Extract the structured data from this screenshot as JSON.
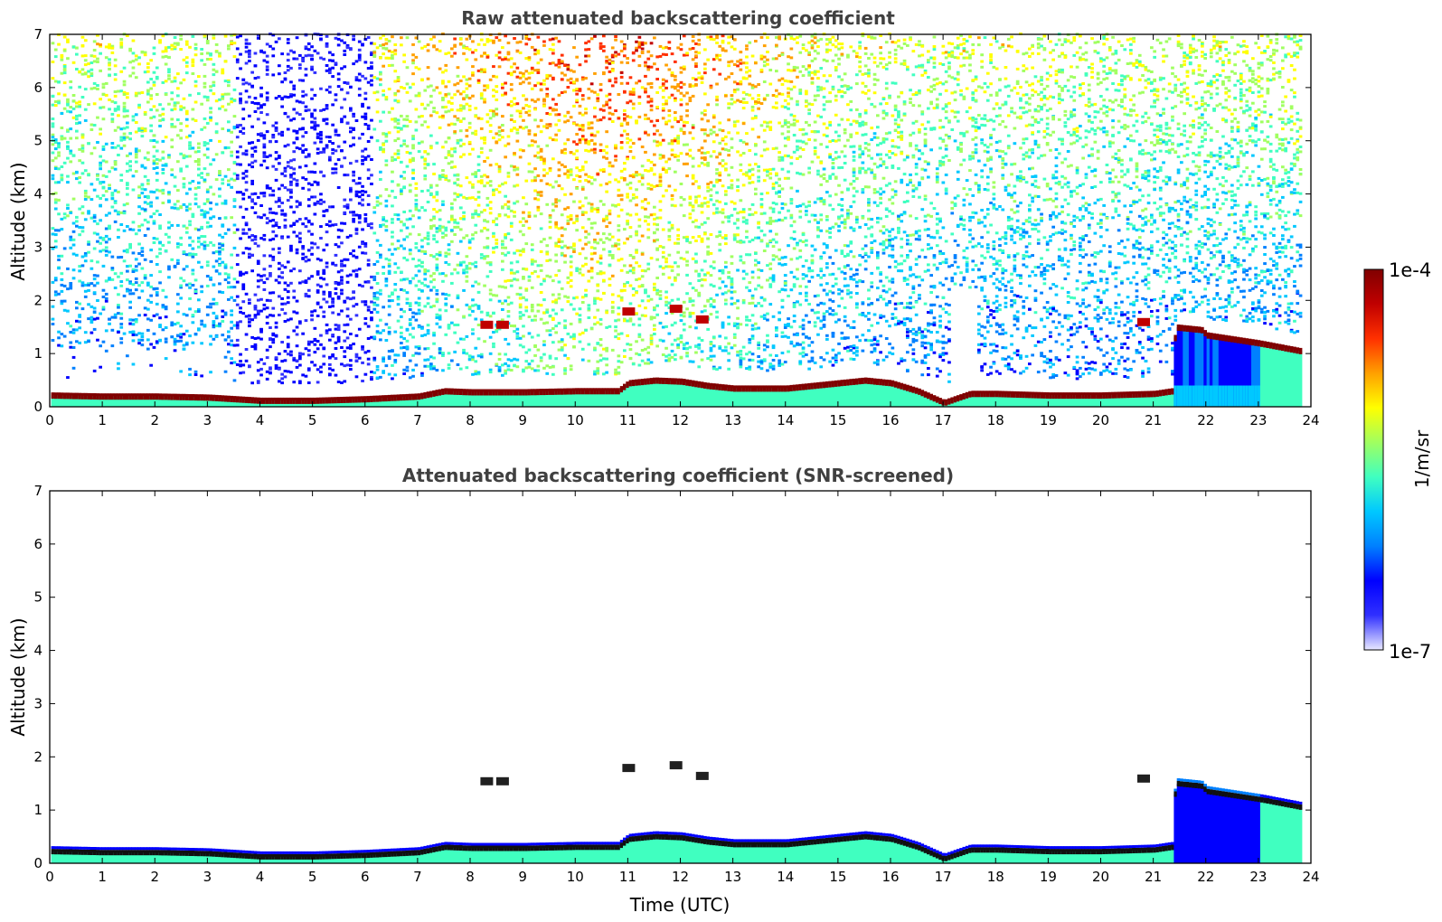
{
  "chart_data": [
    {
      "type": "heatmap",
      "title": "Raw attenuated backscattering coefficient",
      "ylabel": "Altitude (km)",
      "xlabel": "",
      "xlim": [
        0,
        24
      ],
      "ylim": [
        0,
        7
      ],
      "xticks": [
        "0",
        "1",
        "2",
        "3",
        "4",
        "5",
        "6",
        "7",
        "8",
        "9",
        "10",
        "11",
        "12",
        "13",
        "14",
        "15",
        "16",
        "17",
        "18",
        "19",
        "20",
        "21",
        "22",
        "23",
        "24"
      ],
      "yticks": [
        "0",
        "1",
        "2",
        "3",
        "4",
        "5",
        "6",
        "7"
      ],
      "boundary_layer_top_km": [
        [
          0,
          0.22
        ],
        [
          1,
          0.2
        ],
        [
          2,
          0.2
        ],
        [
          3,
          0.18
        ],
        [
          4,
          0.12
        ],
        [
          5,
          0.12
        ],
        [
          6,
          0.15
        ],
        [
          7,
          0.2
        ],
        [
          7.5,
          0.3
        ],
        [
          8,
          0.28
        ],
        [
          9,
          0.28
        ],
        [
          10,
          0.3
        ],
        [
          10.8,
          0.3
        ],
        [
          11,
          0.45
        ],
        [
          11.5,
          0.5
        ],
        [
          12,
          0.48
        ],
        [
          12.5,
          0.4
        ],
        [
          13,
          0.35
        ],
        [
          14,
          0.35
        ],
        [
          15,
          0.45
        ],
        [
          15.5,
          0.5
        ],
        [
          16,
          0.45
        ],
        [
          16.5,
          0.3
        ],
        [
          17,
          0.08
        ],
        [
          17.5,
          0.25
        ],
        [
          18,
          0.25
        ],
        [
          19,
          0.22
        ],
        [
          20,
          0.22
        ],
        [
          21,
          0.25
        ],
        [
          21.35,
          0.3
        ],
        [
          21.4,
          1.5
        ],
        [
          21.9,
          1.45
        ],
        [
          22,
          1.35
        ],
        [
          23,
          1.2
        ],
        [
          23.8,
          1.05
        ]
      ],
      "elevated_layers": [
        [
          8.3,
          1.55
        ],
        [
          8.6,
          1.55
        ],
        [
          11,
          1.8
        ],
        [
          11.9,
          1.85
        ],
        [
          12.4,
          1.65
        ],
        [
          20.8,
          1.6
        ]
      ],
      "low_signal_period_h": [
        3.5,
        6.1
      ]
    },
    {
      "type": "heatmap",
      "title": "Attenuated backscattering coefficient (SNR-screened)",
      "ylabel": "Altitude (km)",
      "xlabel": "Time (UTC)",
      "xlim": [
        0,
        24
      ],
      "ylim": [
        0,
        7
      ],
      "xticks": [
        "0",
        "1",
        "2",
        "3",
        "4",
        "5",
        "6",
        "7",
        "8",
        "9",
        "10",
        "11",
        "12",
        "13",
        "14",
        "15",
        "16",
        "17",
        "18",
        "19",
        "20",
        "21",
        "22",
        "23",
        "24"
      ],
      "yticks": [
        "0",
        "1",
        "2",
        "3",
        "4",
        "5",
        "6",
        "7"
      ]
    }
  ],
  "colorbar": {
    "label": "1/m/sr",
    "max_label": "1e-4",
    "min_label": "1e-7",
    "colormap": [
      "#e8e8ff",
      "#3030ff",
      "#0000ff",
      "#0080ff",
      "#00c8ff",
      "#40ffc0",
      "#a0ff60",
      "#ffff00",
      "#ffa000",
      "#ff3000",
      "#c00000",
      "#800000"
    ]
  }
}
